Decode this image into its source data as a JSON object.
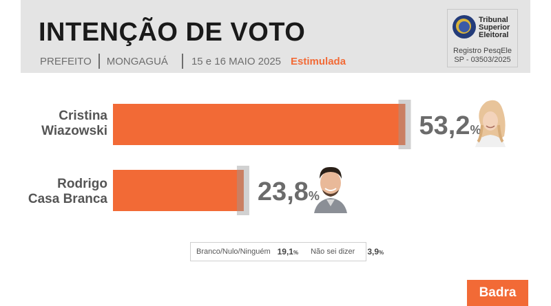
{
  "header": {
    "title": "INTENÇÃO DE VOTO",
    "office": "PREFEITO",
    "city": "MONGAGUÁ",
    "dates": "15 e 16 MAIO 2025",
    "mode": "Estimulada"
  },
  "tse": {
    "name_line1": "Tribunal",
    "name_line2": "Superior",
    "name_line3": "Eleitoral",
    "registry_line1": "Registro PesqEle",
    "registry_line2": "SP - 03503/2025"
  },
  "chart_data": {
    "type": "bar",
    "orientation": "horizontal",
    "categories": [
      "Cristina Wiazowski",
      "Rodrigo Casa Branca"
    ],
    "values": [
      53.2,
      23.8
    ],
    "value_labels": [
      "53,2",
      "23,8"
    ],
    "unit": "%",
    "bar_color": "#f26a36",
    "title": "INTENÇÃO DE VOTO",
    "xlim": [
      0,
      60
    ]
  },
  "candidates": [
    {
      "name_line1": "Cristina",
      "name_line2": "Wiazowski"
    },
    {
      "name_line1": "Rodrigo",
      "name_line2": "Casa Branca"
    }
  ],
  "others": {
    "blank_label": "Branco/Nulo/Ninguém",
    "blank_value": "19,1",
    "dont_know_label": "Não sei dizer",
    "dont_know_value": "3,9",
    "unit": "%"
  },
  "brand": {
    "name": "Badra",
    "color": "#f26a36"
  }
}
